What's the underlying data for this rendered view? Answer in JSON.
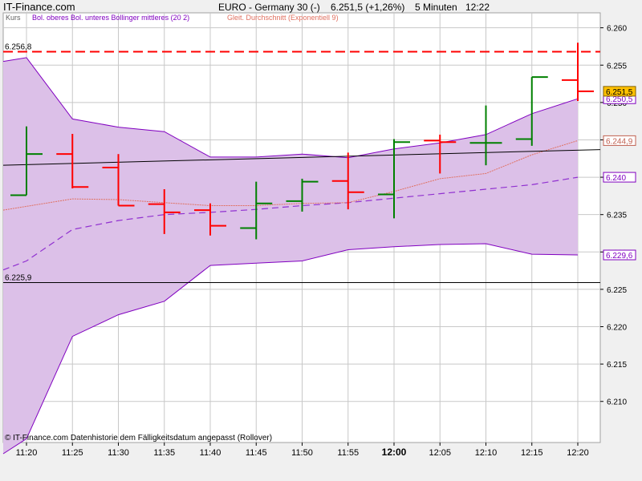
{
  "header": {
    "brand": "IT-Finance.com",
    "title": "EURO - Germany 30 (-)",
    "price_change": "6.251,5 (+1,26%)",
    "interval": "5 Minuten",
    "time": "12:22"
  },
  "legend": {
    "kurs": "Kurs",
    "bollinger": "Bol. oberes Bol. unteres Bollinger mittleres (20 2)",
    "ema": "Gleit. Durchschnitt (Exponentiell 9)"
  },
  "footer": {
    "source": "© IT-Finance.com Datenhistorie dem Fälligkeitsdatum angepasst (Rollover)"
  },
  "colors": {
    "up": "#008000",
    "down": "#ff0000",
    "band_fill": "#dcc0e8",
    "band_line": "#8000c0",
    "ema": "#e07060",
    "trend": "#000000",
    "ref_high": "#ff0000",
    "grid": "#c8c8c8",
    "plot_bg": "#ffffff",
    "price_tag_bg": "#ffc000"
  },
  "chart_data": {
    "type": "ohlc",
    "y_range": [
      6.2045,
      6.262
    ],
    "y_ticks": [
      "6.210",
      "6.215",
      "6.220",
      "6.225",
      "6.230",
      "6.235",
      "6.240",
      "6.245",
      "6.250",
      "6.255",
      "6.260"
    ],
    "y_tick_values": [
      6.21,
      6.215,
      6.22,
      6.225,
      6.23,
      6.235,
      6.24,
      6.245,
      6.25,
      6.255,
      6.26
    ],
    "x_ticks": [
      {
        "idx": 0,
        "label": "11:20",
        "bold": false
      },
      {
        "idx": 1,
        "label": "11:25",
        "bold": false
      },
      {
        "idx": 2,
        "label": "11:30",
        "bold": false
      },
      {
        "idx": 3,
        "label": "11:35",
        "bold": false
      },
      {
        "idx": 4,
        "label": "11:40",
        "bold": false
      },
      {
        "idx": 5,
        "label": "11:45",
        "bold": false
      },
      {
        "idx": 6,
        "label": "11:50",
        "bold": false
      },
      {
        "idx": 7,
        "label": "11:55",
        "bold": false
      },
      {
        "idx": 8,
        "label": "12:00",
        "bold": true
      },
      {
        "idx": 9,
        "label": "12:05",
        "bold": false
      },
      {
        "idx": 10,
        "label": "12:10",
        "bold": false
      },
      {
        "idx": 11,
        "label": "12:15",
        "bold": false
      },
      {
        "idx": 12,
        "label": "12:20",
        "bold": false
      }
    ],
    "bars": [
      {
        "time": "11:20",
        "open": 6.2376,
        "high": 6.2468,
        "low": 6.2376,
        "close": 6.2431
      },
      {
        "time": "11:25",
        "open": 6.2431,
        "high": 6.2458,
        "low": 6.2385,
        "close": 6.2387
      },
      {
        "time": "11:30",
        "open": 6.2413,
        "high": 6.2431,
        "low": 6.2362,
        "close": 6.2362
      },
      {
        "time": "11:35",
        "open": 6.2364,
        "high": 6.2384,
        "low": 6.2324,
        "close": 6.2353
      },
      {
        "time": "11:40",
        "open": 6.2356,
        "high": 6.2365,
        "low": 6.2322,
        "close": 6.2335
      },
      {
        "time": "11:45",
        "open": 6.2332,
        "high": 6.2394,
        "low": 6.2317,
        "close": 6.2365
      },
      {
        "time": "11:50",
        "open": 6.2368,
        "high": 6.2398,
        "low": 6.2354,
        "close": 6.2394
      },
      {
        "time": "11:55",
        "open": 6.2395,
        "high": 6.2433,
        "low": 6.2357,
        "close": 6.238
      },
      {
        "time": "12:00",
        "open": 6.2377,
        "high": 6.2451,
        "low": 6.2345,
        "close": 6.2447
      },
      {
        "time": "12:05",
        "open": 6.2449,
        "high": 6.2457,
        "low": 6.2405,
        "close": 6.2447
      },
      {
        "time": "12:10",
        "open": 6.2446,
        "high": 6.2496,
        "low": 6.2416,
        "close": 6.2446
      },
      {
        "time": "12:15",
        "open": 6.2451,
        "high": 6.2534,
        "low": 6.2442,
        "close": 6.2534
      },
      {
        "time": "12:20",
        "open": 6.253,
        "high": 6.258,
        "low": 6.2502,
        "close": 6.2515
      }
    ],
    "bollinger_upper": [
      6.256,
      6.2478,
      6.2467,
      6.2461,
      6.2427,
      6.2427,
      6.2431,
      6.2426,
      6.2438,
      6.2446,
      6.2457,
      6.2485,
      6.2505
    ],
    "bollinger_middle": [
      6.2288,
      6.233,
      6.2342,
      6.235,
      6.2353,
      6.2357,
      6.2362,
      6.2366,
      6.2372,
      6.2378,
      6.2384,
      6.239,
      6.24
    ],
    "bollinger_lower": [
      6.205,
      6.2187,
      6.2216,
      6.2234,
      6.2282,
      6.2285,
      6.2288,
      6.2303,
      6.2307,
      6.231,
      6.2311,
      6.2297,
      6.2296
    ],
    "band_x_extend": {
      "start_idx": -0.55,
      "upper_start": 6.2555,
      "lower_start": 6.203
    },
    "ema": [
      6.2361,
      6.2371,
      6.237,
      6.2366,
      6.2362,
      6.2362,
      6.2365,
      6.2366,
      6.2381,
      6.2398,
      6.2405,
      6.243,
      6.2449
    ],
    "trend_line": {
      "y_start": 6.2416,
      "y_end": 6.2437
    },
    "ref_lines": [
      {
        "value": 6.2568,
        "label": "6.256,8",
        "style": "dashed",
        "color": "#ff0000"
      },
      {
        "value": 6.2259,
        "label": "6.225,9",
        "style": "solid",
        "color": "#000000"
      }
    ],
    "price_tags": [
      {
        "value": 6.2515,
        "label": "6.251,5",
        "kind": "price"
      },
      {
        "value": 6.2505,
        "label": "6.250,5",
        "kind": "bol_upper"
      },
      {
        "value": 6.2449,
        "label": "6.244,9",
        "kind": "ema"
      },
      {
        "value": 6.24,
        "label": "6.240",
        "kind": "bol_mid"
      },
      {
        "value": 6.2296,
        "label": "6.229,6",
        "kind": "bol_lower"
      }
    ]
  }
}
